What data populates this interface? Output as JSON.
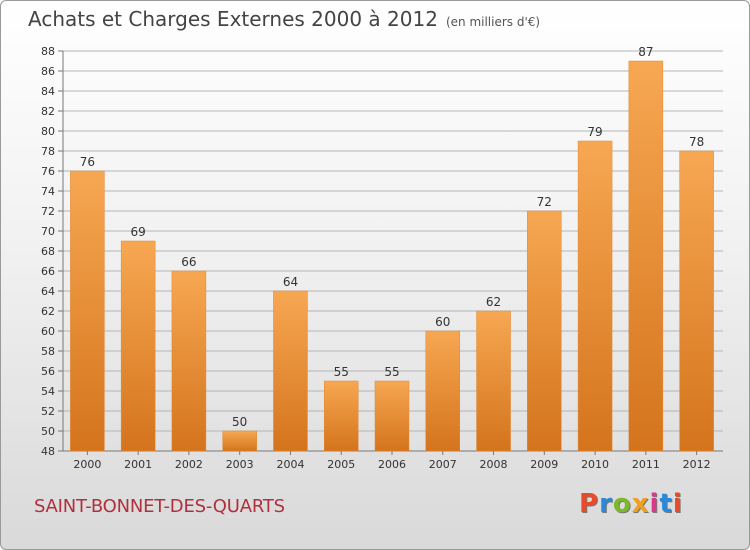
{
  "header": {
    "title": "Achats et Charges Externes 2000 à 2012",
    "unit": "(en milliers d'€)"
  },
  "footer": {
    "commune": "SAINT-BONNET-DES-QUARTS",
    "logo_text": "Proxiti",
    "logo_colors": [
      "#e94a2a",
      "#2a8ad8",
      "#7cb82a",
      "#f0a020",
      "#d83a8a",
      "#2a8ad8",
      "#e94a2a"
    ]
  },
  "colors": {
    "bar_top": "#f7a752",
    "bar_bottom": "#d4741d",
    "grid": "#b5b5b5"
  },
  "chart_data": {
    "type": "bar",
    "title": "Achats et Charges Externes 2000 à 2012",
    "subtitle": "(en milliers d'€)",
    "categories": [
      "2000",
      "2001",
      "2002",
      "2003",
      "2004",
      "2005",
      "2006",
      "2007",
      "2008",
      "2009",
      "2010",
      "2011",
      "2012"
    ],
    "values": [
      76,
      69,
      66,
      50,
      64,
      55,
      55,
      60,
      62,
      72,
      79,
      87,
      78
    ],
    "ylim": [
      48,
      88
    ],
    "ytick_step": 2,
    "grid": true,
    "data_labels": true
  }
}
